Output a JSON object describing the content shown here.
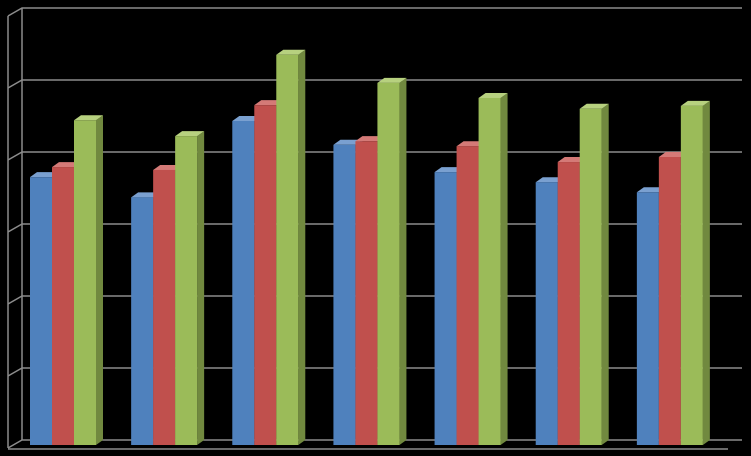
{
  "chart_data": {
    "type": "bar3d",
    "categories": [
      null,
      null,
      null,
      null,
      null,
      null,
      null
    ],
    "series": [
      {
        "color": "#4f81bd",
        "side": "#385d8a",
        "top": "#7aa0d0",
        "values": [
          3.72,
          3.44,
          4.5,
          4.17,
          3.79,
          3.65,
          3.51
        ]
      },
      {
        "color": "#c0504d",
        "side": "#8c3836",
        "top": "#d47a77",
        "values": [
          3.86,
          3.82,
          4.72,
          4.22,
          4.15,
          3.93,
          4.0
        ]
      },
      {
        "color": "#9bbb59",
        "side": "#71893f",
        "top": "#b7d17f",
        "values": [
          4.51,
          4.29,
          5.42,
          5.03,
          4.82,
          4.67,
          4.71
        ]
      }
    ],
    "ylim": [
      0,
      6
    ],
    "yticks": [
      0,
      1,
      2,
      3,
      4,
      5,
      6
    ],
    "grid": true,
    "grid_color": "#8c8c8c"
  }
}
